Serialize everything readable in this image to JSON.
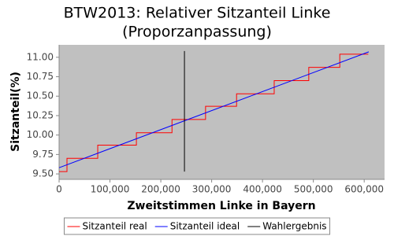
{
  "chart_data": {
    "type": "line",
    "title": "BTW2013: Relativer Sitzanteil Linke",
    "subtitle": "(Proporzanpassung)",
    "x_label": "Zweitstimmen Linke in Bayern",
    "y_label": "Sitzanteil(%)",
    "xlim": [
      0,
      640000
    ],
    "ylim": [
      9.43,
      11.16
    ],
    "xticks": [
      0,
      {
        "value": 100000,
        "label": "100,000"
      },
      {
        "value": 200000,
        "label": "200,000"
      },
      {
        "value": 300000,
        "label": "300,000"
      },
      {
        "value": 400000,
        "label": "400,000"
      },
      {
        "value": 500000,
        "label": "500,000"
      },
      {
        "value": 600000,
        "label": "600,000"
      }
    ],
    "yticks": [
      {
        "value": 9.5,
        "label": "9.50"
      },
      {
        "value": 9.75,
        "label": "9.75"
      },
      {
        "value": 10,
        "label": "10.00"
      },
      {
        "value": 10.25,
        "label": "10.25"
      },
      {
        "value": 10.5,
        "label": "10.50"
      },
      {
        "value": 10.75,
        "label": "10.75"
      },
      {
        "value": 11,
        "label": "11.00"
      }
    ],
    "grid": false,
    "legend": "bottom",
    "series": [
      {
        "name": "Sitzanteil real",
        "color": "#ff0000",
        "x": [
          0,
          15500,
          15500,
          76000,
          76000,
          152000,
          152000,
          222000,
          222000,
          288000,
          288000,
          349000,
          349000,
          423000,
          423000,
          491000,
          491000,
          552000,
          552000,
          608000
        ],
        "values": [
          9.53,
          9.53,
          9.7,
          9.7,
          9.87,
          9.87,
          10.03,
          10.03,
          10.2,
          10.2,
          10.37,
          10.37,
          10.53,
          10.53,
          10.7,
          10.7,
          10.87,
          10.87,
          11.04,
          11.04
        ]
      },
      {
        "name": "Sitzanteil ideal",
        "color": "#0000ff",
        "x": [
          0,
          609000
        ],
        "values": [
          9.58,
          11.07
        ]
      },
      {
        "name": "Wahlergebnis",
        "color": "#000000",
        "x": [
          246500,
          246500
        ],
        "values": [
          9.53,
          11.08
        ]
      }
    ]
  }
}
